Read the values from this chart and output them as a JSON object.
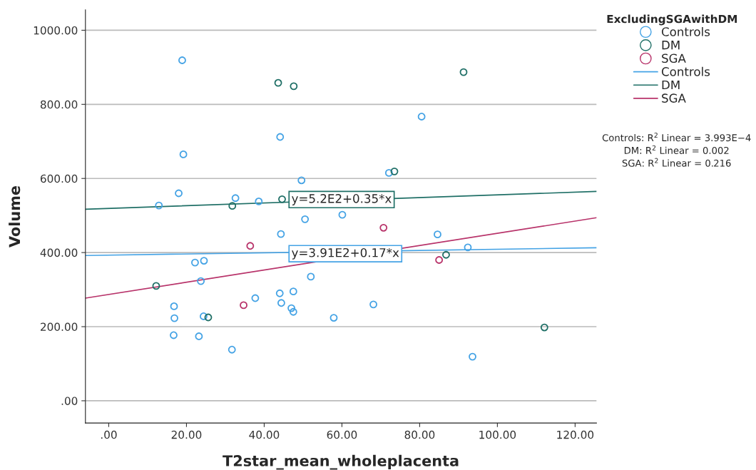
{
  "chart_data": {
    "type": "scatter",
    "xlabel": "T2star_mean_wholeplacenta",
    "ylabel": "Volume",
    "legend_title": "ExcludingSGAwithDM",
    "xlim": [
      -6,
      125.5
    ],
    "ylim": [
      -60,
      1055
    ],
    "xticks": [
      {
        "value": 0,
        "label": ".00"
      },
      {
        "value": 20,
        "label": "20.00"
      },
      {
        "value": 40,
        "label": "40.00"
      },
      {
        "value": 60,
        "label": "60.00"
      },
      {
        "value": 80,
        "label": "80.00"
      },
      {
        "value": 100,
        "label": "100.00"
      },
      {
        "value": 120,
        "label": "120.00"
      }
    ],
    "yticks": [
      {
        "value": 0,
        "label": ".00"
      },
      {
        "value": 200,
        "label": "200.00"
      },
      {
        "value": 400,
        "label": "400.00"
      },
      {
        "value": 600,
        "label": "600.00"
      },
      {
        "value": 800,
        "label": "800.00"
      },
      {
        "value": 1000,
        "label": "1000.00"
      }
    ],
    "grid": "y",
    "legend": "right",
    "series": [
      {
        "name": "Controls",
        "marker": "circle",
        "color": "#45a3e5",
        "x": [
          18.9,
          19.2,
          18.0,
          12.9,
          32.6,
          38.6,
          44.1,
          49.6,
          50.5,
          44.3,
          80.5,
          72.1,
          60.1,
          84.6,
          22.2,
          24.5,
          52.0,
          23.7,
          44.0,
          47.5,
          37.7,
          44.4,
          47.0,
          47.5,
          16.8,
          16.9,
          24.4,
          57.9,
          16.7,
          23.2,
          31.7,
          92.4,
          68.1,
          93.6
        ],
        "values": [
          919,
          665,
          560,
          527,
          547,
          538,
          712,
          595,
          490,
          450,
          767,
          615,
          502,
          449,
          373,
          378,
          335,
          323,
          290,
          295,
          277,
          264,
          250,
          240,
          255,
          223,
          228,
          224,
          177,
          174,
          138,
          414,
          260,
          119
        ]
      },
      {
        "name": "DM",
        "marker": "circle",
        "color": "#1f6f66",
        "x": [
          43.6,
          47.6,
          31.8,
          44.6,
          91.3,
          73.5,
          12.2,
          25.6,
          86.8,
          112.1
        ],
        "values": [
          858,
          849,
          526,
          544,
          887,
          619,
          310,
          225,
          394,
          198
        ]
      },
      {
        "name": "SGA",
        "marker": "circle",
        "color": "#b8336a",
        "x": [
          36.4,
          34.7,
          70.7,
          85.0
        ],
        "values": [
          418,
          258,
          467,
          380
        ]
      },
      {
        "name": "Controls",
        "type": "line",
        "marker": "none",
        "color": "#45a3e5",
        "x": [
          -6,
          125.5
        ],
        "values": [
          392,
          413
        ]
      },
      {
        "name": "DM",
        "type": "line",
        "marker": "none",
        "color": "#1f6f66",
        "x": [
          -6,
          125.5
        ],
        "values": [
          517,
          565
        ]
      },
      {
        "name": "SGA",
        "type": "line",
        "marker": "none",
        "color": "#b8336a",
        "x": [
          -6,
          125.5
        ],
        "values": [
          277,
          494
        ]
      }
    ],
    "annotations": [
      {
        "text": "y=5.2E2+0.35*x",
        "x": 47,
        "y": 543
      },
      {
        "text": "y=3.91E2+0.17*x",
        "x": 47,
        "y": 397
      },
      "Controls: R$^{2}$ Linear = 3.993E−4",
      "DM: R$^{2}$ Linear = 0.002",
      "SGA: R$^{2}$ Linear = 0.216"
    ]
  }
}
